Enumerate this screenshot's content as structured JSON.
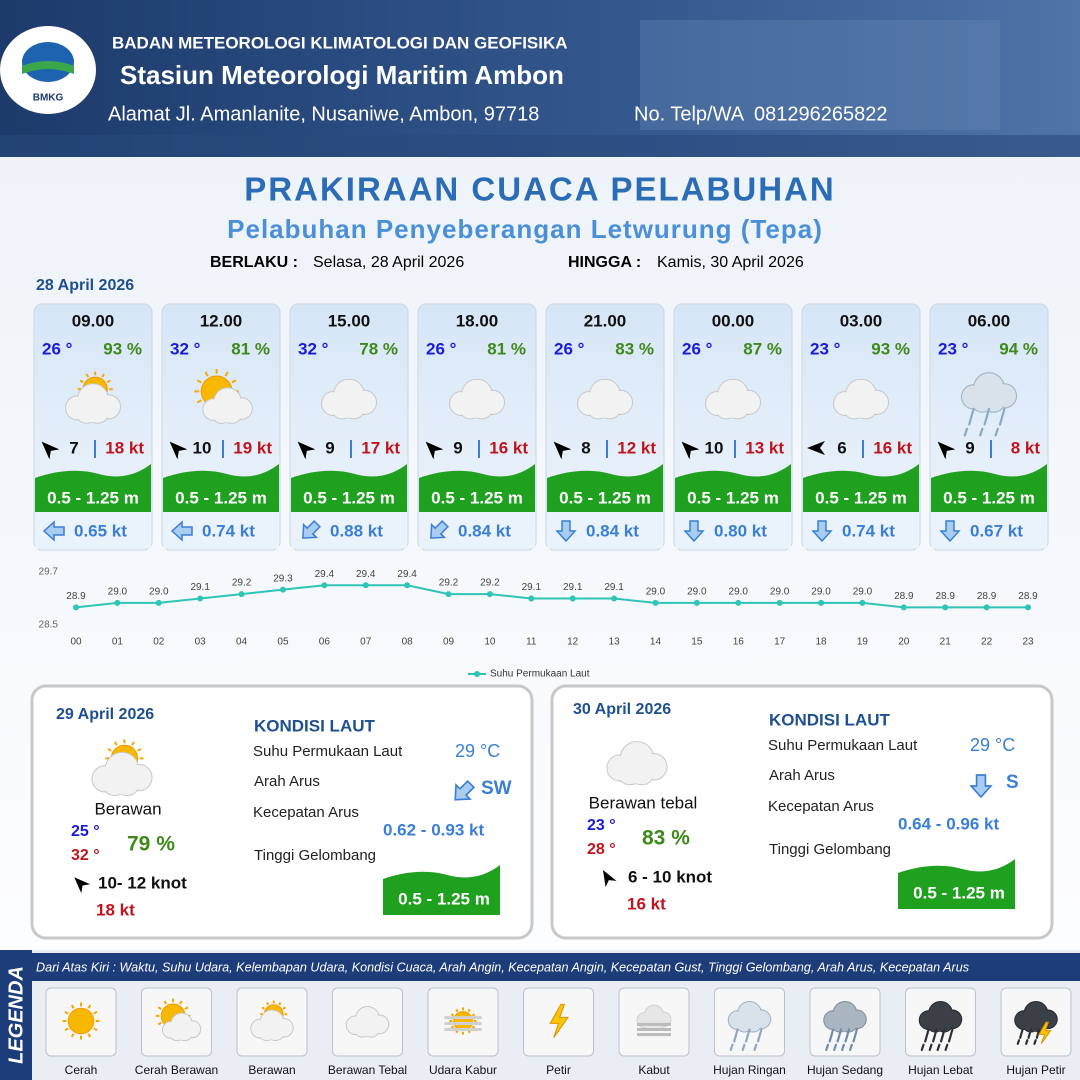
{
  "header": {
    "logo": "BMKG",
    "org": "BADAN METEOROLOGI KLIMATOLOGI DAN GEOFISIKA",
    "station": "Stasiun Meteorologi Maritim Ambon",
    "address": "Alamat Jl. Amanlanite, Nusaniwe, Ambon, 97718",
    "phone": "No. Telp/WA  081296265822"
  },
  "title": "PRAKIRAAN CUACA PELABUHAN",
  "subtitle": "Pelabuhan Penyeberangan Letwurung (Tepa)",
  "valid_from_label": "BERLAKU :",
  "valid_from": "Selasa, 28 April 2026",
  "valid_to_label": "HINGGA :",
  "valid_to": "Kamis, 30 April 2026",
  "day1": {
    "date": "28 April 2026",
    "forecasts": [
      {
        "time": "09.00",
        "temp": "26 °",
        "humidity": "93 %",
        "wind": "7",
        "gust": "18 kt",
        "wave": "0.5 - 1.25 m",
        "current": "0.65 kt"
      },
      {
        "time": "12.00",
        "temp": "32 °",
        "humidity": "81 %",
        "wind": "10",
        "gust": "19 kt",
        "wave": "0.5 - 1.25 m",
        "current": "0.74 kt"
      },
      {
        "time": "15.00",
        "temp": "32 °",
        "humidity": "78 %",
        "wind": "9",
        "gust": "17 kt",
        "wave": "0.5 - 1.25 m",
        "current": "0.88 kt"
      },
      {
        "time": "18.00",
        "temp": "26 °",
        "humidity": "81 %",
        "wind": "9",
        "gust": "16 kt",
        "wave": "0.5 - 1.25 m",
        "current": "0.84 kt"
      },
      {
        "time": "21.00",
        "temp": "26 °",
        "humidity": "83 %",
        "wind": "8",
        "gust": "12 kt",
        "wave": "0.5 - 1.25 m",
        "current": "0.84 kt"
      },
      {
        "time": "00.00",
        "temp": "26 °",
        "humidity": "87 %",
        "wind": "10",
        "gust": "13 kt",
        "wave": "0.5 - 1.25 m",
        "current": "0.80 kt"
      },
      {
        "time": "03.00",
        "temp": "23 °",
        "humidity": "93 %",
        "wind": "6",
        "gust": "16 kt",
        "wave": "0.5 - 1.25 m",
        "current": "0.74 kt"
      },
      {
        "time": "06.00",
        "temp": "23 °",
        "humidity": "94 %",
        "wind": "9",
        "gust": "8 kt",
        "wave": "0.5 - 1.25 m",
        "current": "0.67 kt"
      }
    ]
  },
  "chart_data": {
    "type": "line",
    "categories": [
      "00",
      "01",
      "02",
      "03",
      "04",
      "05",
      "06",
      "07",
      "08",
      "09",
      "10",
      "11",
      "12",
      "13",
      "14",
      "15",
      "16",
      "17",
      "18",
      "19",
      "20",
      "21",
      "22",
      "23"
    ],
    "series": [
      {
        "name": "Suhu Permukaan Laut",
        "color": "#2ec4b6",
        "values": [
          28.9,
          29.0,
          29.0,
          29.1,
          29.2,
          29.3,
          29.4,
          29.4,
          29.4,
          29.2,
          29.2,
          29.1,
          29.1,
          29.1,
          29.0,
          29.0,
          29.0,
          29.0,
          29.0,
          29.0,
          28.9,
          28.9,
          28.9,
          28.9
        ],
        "value_labels": [
          "28.9",
          "29.0",
          "29.0",
          "29.1",
          "29.2",
          "29.3",
          "29.4",
          "29.4",
          "29.4",
          "29.2",
          "29.2",
          "29.1",
          "29.1",
          "29.1",
          "29.0",
          "29.0",
          "29.0",
          "29.0",
          "29.0",
          "29.0",
          "28.9",
          "28.9",
          "28.9",
          "28.9"
        ]
      }
    ],
    "ylim": [
      28.5,
      29.7
    ],
    "yticks": [
      28.5,
      29.7
    ]
  },
  "panels": [
    {
      "date": "29 April 2026",
      "condition": "Berawan",
      "temp_min": "25 °",
      "temp_max": "32 °",
      "humidity": "79 %",
      "wind": "10- 12 knot",
      "gust": "18 kt",
      "sea_title": "KONDISI LAUT",
      "sst_label": "Suhu Permukaan Laut",
      "sst": "29 °C",
      "current_dir_label": "Arah Arus",
      "current_dir": "SW",
      "current_speed_label": "Kecepatan Arus",
      "current_speed": "0.62 - 0.93 kt",
      "wave_label": "Tinggi Gelombang",
      "wave": "0.5 - 1.25 m"
    },
    {
      "date": "30 April 2026",
      "condition": "Berawan tebal",
      "temp_min": "23 °",
      "temp_max": "28 °",
      "humidity": "83 %",
      "wind": "6 - 10 knot",
      "gust": "16 kt",
      "sea_title": "KONDISI LAUT",
      "sst_label": "Suhu Permukaan Laut",
      "sst": "29 °C",
      "current_dir_label": "Arah Arus",
      "current_dir": "S",
      "current_speed_label": "Kecepatan Arus",
      "current_speed": "0.64 - 0.96 kt",
      "wave_label": "Tinggi Gelombang",
      "wave": "0.5 - 1.25 m"
    }
  ],
  "legend": {
    "title": "LEGENDA",
    "description": "Dari Atas Kiri : Waktu, Suhu Udara, Kelembapan Udara, Kondisi Cuaca, Arah Angin, Kecepatan Angin, Kecepatan Gust, Tinggi Gelombang, Arah Arus, Kecepatan Arus",
    "items": [
      "Cerah",
      "Cerah Berawan",
      "Berawan",
      "Berawan Tebal",
      "Udara Kabur",
      "Petir",
      "Kabut",
      "Hujan Ringan",
      "Hujan Sedang",
      "Hujan Lebat",
      "Hujan Petir"
    ]
  }
}
